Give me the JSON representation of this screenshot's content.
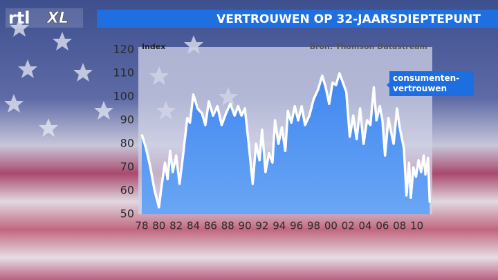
{
  "logo": [
    "rtl",
    "XL"
  ],
  "chart_data": {
    "type": "area",
    "title": "VERTROUWEN OP 32-JAARSDIEPTEPUNT",
    "y_label": "Index",
    "source": "Bron: Thomson Datastream",
    "x": [
      1978,
      1978.5,
      1979,
      1979.5,
      1980,
      1980.3,
      1980.7,
      1981,
      1981.3,
      1981.6,
      1982,
      1982.4,
      1982.8,
      1983.3,
      1983.6,
      1984,
      1984.5,
      1985,
      1985.4,
      1985.8,
      1986.3,
      1986.8,
      1987.3,
      1987.8,
      1988.3,
      1988.8,
      1989.2,
      1989.6,
      1990,
      1990.5,
      1990.9,
      1991.3,
      1991.7,
      1992,
      1992.4,
      1992.8,
      1993.2,
      1993.5,
      1993.9,
      1994.3,
      1994.7,
      1995,
      1995.4,
      1995.8,
      1996.2,
      1996.6,
      1997,
      1997.5,
      1998,
      1998.5,
      1999,
      1999.4,
      1999.8,
      2000.2,
      2000.6,
      2001,
      2001.4,
      2001.8,
      2002.2,
      2002.6,
      2003,
      2003.4,
      2003.8,
      2004.2,
      2004.6,
      2005,
      2005.3,
      2005.7,
      2006,
      2006.3,
      2006.7,
      2007,
      2007.3,
      2007.7,
      2008,
      2008.5,
      2008.8,
      2009.1,
      2009.3,
      2009.6,
      2009.9,
      2010.2,
      2010.5,
      2010.8,
      2011,
      2011.3,
      2011.5
    ],
    "series": [
      {
        "name": "consumenten-vertrouwen",
        "color": "#ffffff",
        "fill": "#4a8ff0",
        "values": [
          84,
          78,
          70,
          60,
          53,
          62,
          72,
          65,
          77,
          68,
          75,
          63,
          75,
          91,
          89,
          101,
          95,
          93,
          88,
          98,
          92,
          96,
          88,
          93,
          97,
          92,
          96,
          92,
          95,
          78,
          63,
          80,
          73,
          86,
          68,
          76,
          72,
          90,
          80,
          87,
          77,
          94,
          89,
          96,
          90,
          96,
          88,
          92,
          99,
          103,
          109,
          104,
          97,
          106,
          105,
          110,
          106,
          102,
          83,
          92,
          82,
          95,
          80,
          90,
          88,
          104,
          90,
          96,
          90,
          75,
          91,
          85,
          80,
          95,
          87,
          78,
          58,
          72,
          57,
          70,
          66,
          73,
          68,
          75,
          67,
          74,
          55
        ]
      }
    ],
    "xlim": [
      1977.6,
      2011.8
    ],
    "ylim": [
      50,
      120
    ],
    "yticks": [
      50,
      60,
      70,
      80,
      90,
      100,
      110,
      120
    ],
    "xticks": [
      {
        "value": 1978,
        "label": "78"
      },
      {
        "value": 1980,
        "label": "80"
      },
      {
        "value": 1982,
        "label": "82"
      },
      {
        "value": 1984,
        "label": "84"
      },
      {
        "value": 1986,
        "label": "86"
      },
      {
        "value": 1988,
        "label": "88"
      },
      {
        "value": 1990,
        "label": "90"
      },
      {
        "value": 1992,
        "label": "92"
      },
      {
        "value": 1994,
        "label": "94"
      },
      {
        "value": 1996,
        "label": "96"
      },
      {
        "value": 1998,
        "label": "98"
      },
      {
        "value": 2000,
        "label": "00"
      },
      {
        "value": 2002,
        "label": "02"
      },
      {
        "value": 2004,
        "label": "04"
      },
      {
        "value": 2006,
        "label": "06"
      },
      {
        "value": 2008,
        "label": "08"
      },
      {
        "value": 2010,
        "label": "10"
      }
    ]
  }
}
